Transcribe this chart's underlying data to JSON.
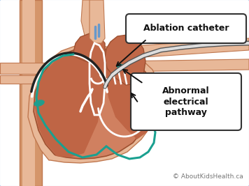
{
  "bg_color": "#ffffff",
  "border_color": "#aaccee",
  "label1": "Ablation catheter",
  "label2": "Abnormal\nelectrical\npathway",
  "copyright": "© AboutKidsHealth.ca",
  "heart_fill": "#d08060",
  "heart_outer": "#c87050",
  "heart_dark": "#9e5030",
  "skin_light": "#e8b898",
  "skin_mid": "#d4956a",
  "skin_dark": "#c07850",
  "teal_color": "#1aa090",
  "white_color": "#ffffff",
  "dark_gray": "#222222",
  "label_box_color": "#ffffff",
  "label_border": "#333333",
  "atria_fill": "#c06848",
  "lv_fill": "#bf6545",
  "catheter_dark": "#555555",
  "catheter_light": "#dddddd"
}
